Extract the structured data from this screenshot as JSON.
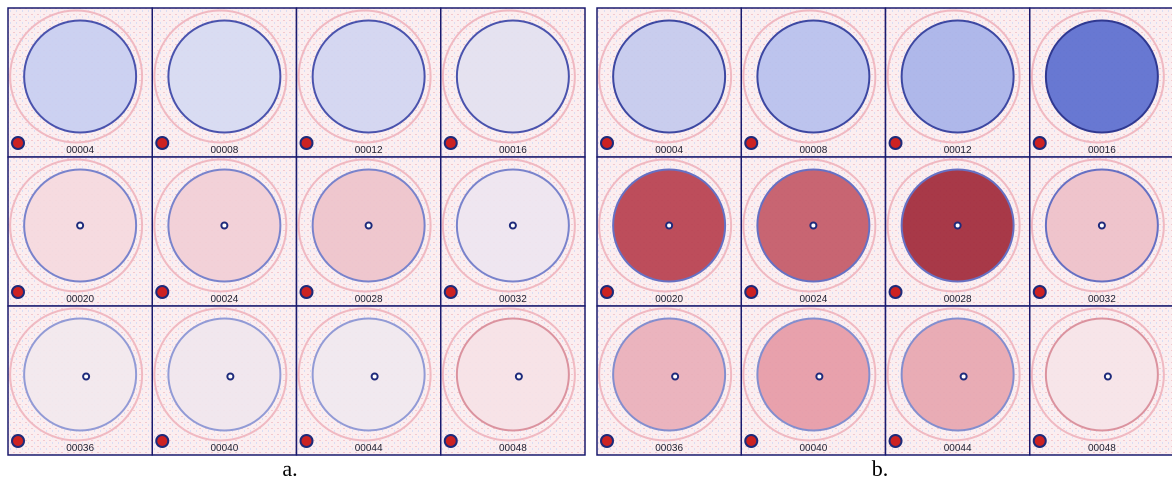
{
  "panels": [
    {
      "caption": "a.",
      "frames": [
        "00004",
        "00008",
        "00012",
        "00016",
        "00020",
        "00024",
        "00028",
        "00032",
        "00036",
        "00040",
        "00044",
        "00048"
      ]
    },
    {
      "caption": "b.",
      "frames": [
        "00004",
        "00008",
        "00012",
        "00016",
        "00020",
        "00024",
        "00028",
        "00032",
        "00036",
        "00040",
        "00044",
        "00048"
      ]
    }
  ]
}
